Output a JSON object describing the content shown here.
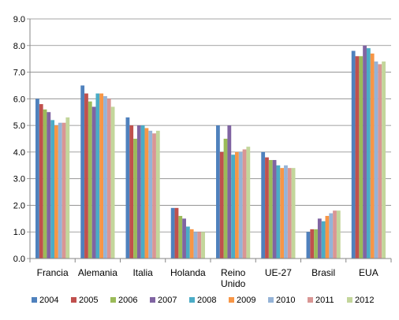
{
  "chart_data": {
    "type": "bar",
    "categories": [
      "Francia",
      "Alemania",
      "Italia",
      "Holanda",
      "Reino Unido",
      "UE-27",
      "Brasil",
      "EUA"
    ],
    "category_lines": [
      [
        "Francia"
      ],
      [
        "Alemania"
      ],
      [
        "Italia"
      ],
      [
        "Holanda"
      ],
      [
        "Reino",
        "Unido"
      ],
      [
        "UE-27"
      ],
      [
        "Brasil"
      ],
      [
        "EUA"
      ]
    ],
    "ylim": [
      0,
      9
    ],
    "yticks": [
      "0.0",
      "1.0",
      "2.0",
      "3.0",
      "4.0",
      "5.0",
      "6.0",
      "7.0",
      "8.0",
      "9.0"
    ],
    "grid": true,
    "legend_position": "bottom",
    "series": [
      {
        "name": "2004",
        "color": "#4F81BD",
        "values": [
          6.0,
          6.5,
          5.3,
          1.9,
          5.0,
          4.0,
          1.0,
          7.8
        ]
      },
      {
        "name": "2005",
        "color": "#C0504D",
        "values": [
          5.8,
          6.2,
          5.0,
          1.9,
          4.0,
          3.8,
          1.1,
          7.6
        ]
      },
      {
        "name": "2006",
        "color": "#9BBB59",
        "values": [
          5.6,
          5.9,
          4.5,
          1.6,
          4.5,
          3.7,
          1.1,
          7.6
        ]
      },
      {
        "name": "2007",
        "color": "#8064A2",
        "values": [
          5.5,
          5.7,
          5.0,
          1.5,
          5.0,
          3.7,
          1.5,
          8.0
        ]
      },
      {
        "name": "2008",
        "color": "#4BACC6",
        "values": [
          5.2,
          6.2,
          5.0,
          1.2,
          3.9,
          3.5,
          1.4,
          7.9
        ]
      },
      {
        "name": "2009",
        "color": "#F79646",
        "values": [
          5.0,
          6.2,
          4.9,
          1.1,
          4.0,
          3.4,
          1.6,
          7.7
        ]
      },
      {
        "name": "2010",
        "color": "#95B3D7",
        "values": [
          5.1,
          6.1,
          4.8,
          1.0,
          4.0,
          3.5,
          1.7,
          7.4
        ]
      },
      {
        "name": "2011",
        "color": "#D99694",
        "values": [
          5.1,
          6.0,
          4.7,
          1.0,
          4.1,
          3.4,
          1.8,
          7.3
        ]
      },
      {
        "name": "2012",
        "color": "#C3D69B",
        "values": [
          5.3,
          5.7,
          4.8,
          1.0,
          4.2,
          3.4,
          1.8,
          7.4
        ]
      }
    ]
  }
}
